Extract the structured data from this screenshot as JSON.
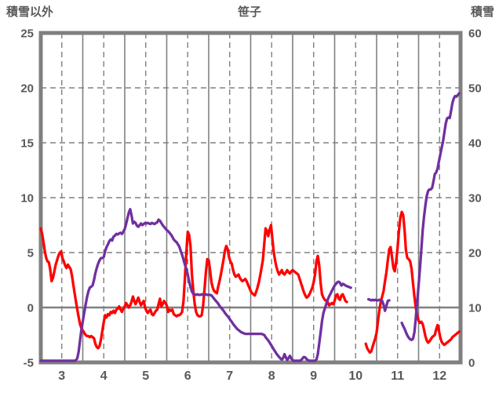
{
  "title": "笹子",
  "left_axis": {
    "title": "積雪以外",
    "min": -5,
    "max": 25,
    "ticks": [
      25,
      20,
      15,
      10,
      5,
      0,
      -5
    ]
  },
  "right_axis": {
    "title": "積雪",
    "min": 0,
    "max": 60,
    "ticks": [
      60,
      50,
      40,
      30,
      20,
      10,
      0
    ]
  },
  "x_axis": {
    "labels": [
      "3",
      "4",
      "5",
      "6",
      "7",
      "8",
      "9",
      "10",
      "11",
      "12"
    ],
    "first_month": 3,
    "last_month": 12
  },
  "colors": {
    "red_series": "#ff0000",
    "purple_series": "#7030a0",
    "grid": "#808080",
    "border": "#808080",
    "tick_text": "#595959",
    "zero_line": "#808080",
    "background": "#ffffff"
  },
  "chart_data": {
    "type": "line",
    "title": "笹子",
    "x_unit": "month (daily samples)",
    "xlim_months": [
      3,
      13
    ],
    "left_ylim": [
      -5,
      25
    ],
    "right_ylim": [
      0,
      60
    ],
    "grid": {
      "vertical_solid": "month starts",
      "vertical_dashed": "mid-month",
      "horizontal_dashed_left_values": [
        5,
        10,
        15,
        20
      ],
      "horizontal_solid_left_value": 0
    },
    "legend": "none",
    "series": [
      {
        "name": "積雪以外",
        "axis": "left",
        "color": "#ff0000",
        "segments": [
          {
            "start_month": 3,
            "start_day": 1,
            "daily_values": [
              7.2,
              6.7,
              5.9,
              5.1,
              4.5,
              4.2,
              4.1,
              3.4,
              2.4,
              2.7,
              3.3,
              3.9,
              4.3,
              4.7,
              5.0,
              5.1,
              4.5,
              4.2,
              3.8,
              3.6,
              3.9,
              3.7,
              3.5,
              2.9,
              2.1,
              1.3,
              0.5,
              -0.2,
              -0.9,
              -1.5,
              -1.9,
              -2.1,
              -2.3,
              -2.5,
              -2.6,
              -2.6,
              -2.7,
              -2.6,
              -2.7,
              -2.8,
              -3.3,
              -3.6,
              -3.7,
              -3.5,
              -2.9,
              -2.1,
              -1.3,
              -0.7,
              -0.9,
              -0.6,
              -0.7,
              -0.4,
              -0.5,
              -0.3,
              -0.5,
              -0.2,
              -0.1,
              0.1,
              -0.2,
              -0.4,
              -0.1,
              0.1,
              0.4,
              0.2,
              0.0,
              0.2,
              0.5,
              1.0,
              0.6,
              0.3,
              0.6,
              0.9,
              0.5,
              0.2,
              0.4,
              0.6,
              0.0,
              -0.3,
              -0.5,
              -0.3,
              -0.2,
              -0.6,
              -0.7,
              -0.5,
              -0.3,
              -0.2,
              0.3,
              0.8,
              0.1,
              0.3,
              0.6,
              0.4,
              0.2,
              -0.4,
              -0.2,
              -0.3,
              -0.2,
              -0.6,
              -0.7,
              -0.8,
              -0.7,
              -0.7,
              -0.6,
              -0.4,
              0.6,
              2.7,
              5.0,
              6.9,
              6.6,
              5.6,
              3.0,
              1.5,
              0.3,
              -0.4,
              -0.7,
              -0.8,
              -0.8,
              -0.7,
              0.2,
              1.6,
              3.2,
              4.4,
              4.3,
              3.4,
              2.3,
              1.8,
              1.5,
              1.4,
              1.3,
              1.9,
              2.4,
              3.0,
              3.7,
              4.4,
              5.2,
              5.6,
              5.3,
              4.6,
              4.2,
              4.0,
              3.4,
              3.0,
              2.8,
              2.9,
              3.0,
              2.7,
              2.5,
              2.4,
              2.5,
              2.6,
              2.4,
              2.1,
              1.8,
              1.5,
              1.3,
              1.2,
              1.1,
              1.4,
              1.8,
              2.3,
              2.9,
              3.6,
              4.3,
              5.8,
              7.2,
              7.0,
              6.5,
              7.1,
              7.5,
              6.3,
              5.1,
              4.3,
              3.7,
              3.3,
              3.0,
              3.2,
              3.4,
              3.1,
              3.0,
              3.2,
              3.4,
              3.2,
              3.1,
              3.3,
              3.4,
              3.3,
              3.2,
              3.1,
              3.0,
              2.6,
              2.2,
              1.8,
              1.4,
              1.1,
              0.9,
              1.0,
              1.2,
              1.5,
              1.8,
              2.3,
              3.0,
              4.2,
              4.7,
              3.8,
              2.2,
              1.2,
              0.9,
              0.7,
              0.6,
              0.5,
              0.2,
              0.3,
              0.4,
              0.3,
              0.6,
              1.1,
              1.2,
              0.8,
              0.7,
              1.1,
              1.2,
              0.9,
              0.6,
              0.5
            ]
          },
          {
            "start_month": 10,
            "start_day": 24,
            "daily_values": [
              -3.3,
              -3.7,
              -3.9,
              -4.1,
              -4.0,
              -3.6,
              -3.2,
              -2.8,
              -2.3,
              -1.2,
              -0.2,
              0.5,
              1.0,
              1.5,
              2.4,
              3.2,
              4.3,
              5.3,
              5.5,
              4.6,
              3.6,
              3.3,
              4.2,
              5.5,
              7.0,
              8.2,
              8.7,
              8.4,
              7.0,
              5.2,
              4.5,
              4.4,
              4.2,
              3.5,
              2.2,
              1.0,
              0.0,
              -0.7,
              -1.2,
              -1.4,
              -1.3,
              -1.5,
              -2.0,
              -2.6,
              -3.0,
              -3.2,
              -3.1,
              -2.9,
              -2.7,
              -2.6,
              -2.5,
              -2.0,
              -1.6,
              -2.1,
              -2.7,
              -3.1,
              -3.3,
              -3.4,
              -3.3,
              -3.2,
              -3.1,
              -3.0,
              -2.9,
              -2.7,
              -2.6,
              -2.5,
              -2.4,
              -2.3,
              -2.2
            ]
          }
        ]
      },
      {
        "name": "積雪",
        "axis": "right",
        "color": "#7030a0",
        "segments": [
          {
            "start_month": 3,
            "start_day": 1,
            "daily_values": [
              0.3,
              0.3,
              0.3,
              0.3,
              0.3,
              0.3,
              0.3,
              0.3,
              0.3,
              0.3,
              0.3,
              0.3,
              0.3,
              0.3,
              0.3,
              0.3,
              0.3,
              0.3,
              0.3,
              0.3,
              0.3,
              0.3,
              0.3,
              0.3,
              0.3,
              0.3,
              0.4,
              0.8,
              2.0,
              4.0,
              6.0,
              7.5,
              9.0,
              10.5,
              11.8,
              12.9,
              13.6,
              13.8,
              14.0,
              15.0,
              16.2,
              17.2,
              18.0,
              18.6,
              19.0,
              19.0,
              19.2,
              20.3,
              21.0,
              21.5,
              22.1,
              22.4,
              22.2,
              22.9,
              23.1,
              23.4,
              23.3,
              23.5,
              23.6,
              23.4,
              23.8,
              24.3,
              25.2,
              26.3,
              27.3,
              27.9,
              26.8,
              25.3,
              25.6,
              25.4,
              24.9,
              24.7,
              25.0,
              25.3,
              25.0,
              25.2,
              25.4,
              25.3,
              25.4,
              25.3,
              25.2,
              25.4,
              25.3,
              25.2,
              25.4,
              25.5,
              26.0,
              25.8,
              25.4,
              25.0,
              24.7,
              24.4,
              24.1,
              23.9,
              23.6,
              23.3,
              22.9,
              22.4,
              22.1,
              21.9,
              21.5,
              21.1,
              20.3,
              19.6,
              18.7,
              17.8,
              17.0,
              16.0,
              14.8,
              13.7,
              12.9,
              12.5,
              12.4,
              12.3,
              12.4,
              12.3,
              12.3,
              12.4,
              12.3,
              12.3,
              12.4,
              12.3,
              12.3,
              12.3,
              12.2,
              11.9,
              11.6,
              11.3,
              11.0,
              10.7,
              10.3,
              10.0,
              9.7,
              9.4,
              9.0,
              8.7,
              8.4,
              8.1,
              7.7,
              7.4,
              7.0,
              6.7,
              6.4,
              6.1,
              5.9,
              5.7,
              5.5,
              5.4,
              5.3,
              5.2,
              5.2,
              5.2,
              5.2,
              5.2,
              5.2,
              5.2,
              5.2,
              5.2,
              5.2,
              5.2,
              5.2,
              5.2,
              5.1,
              5.0,
              4.6,
              4.3,
              4.0,
              3.6,
              3.2,
              2.8,
              2.4,
              2.0,
              1.6,
              1.3,
              1.0,
              0.7,
              0.5,
              0.8,
              1.5,
              0.9,
              0.4,
              0.8,
              1.2,
              0.7,
              0.4,
              0.3,
              0.3,
              0.3,
              0.3,
              0.3,
              0.4,
              0.7,
              1.0,
              0.9,
              0.6,
              0.4,
              0.3,
              0.3,
              0.3,
              0.3,
              0.3,
              0.5,
              1.5,
              3.5,
              5.5,
              7.5,
              9.0,
              9.8,
              10.6,
              11.4,
              12.0,
              12.5,
              13.0,
              13.5,
              14.0,
              14.3,
              14.6,
              14.7,
              14.5,
              14.0,
              14.3,
              14.2,
              14.0,
              13.9,
              13.8,
              13.7,
              13.6
            ]
          },
          {
            "start_month": 10,
            "start_day": 26,
            "daily_values": [
              11.5,
              11.4,
              11.3,
              11.4,
              11.3,
              11.4,
              11.3,
              11.3,
              11.4,
              11.3,
              11.2,
              10.5,
              9.4,
              10.3,
              11.2,
              11.3
            ]
          },
          {
            "start_month": 11,
            "start_day": 19,
            "daily_values": [
              7.2,
              6.6,
              6.1,
              5.5,
              4.9,
              4.5,
              4.2,
              4.1,
              4.3,
              5.5,
              8.0,
              11.0,
              14.0,
              17.0,
              20.5,
              24.0,
              26.5,
              28.5,
              30.3,
              31.2,
              31.5,
              31.5,
              31.8,
              33.0,
              34.3,
              34.6,
              35.3,
              36.6,
              37.8,
              39.0,
              40.2,
              41.8,
              43.4,
              44.4,
              44.6,
              44.5,
              45.8,
              47.2,
              48.1,
              48.5,
              48.4,
              48.7,
              49.0
            ]
          }
        ]
      }
    ]
  }
}
